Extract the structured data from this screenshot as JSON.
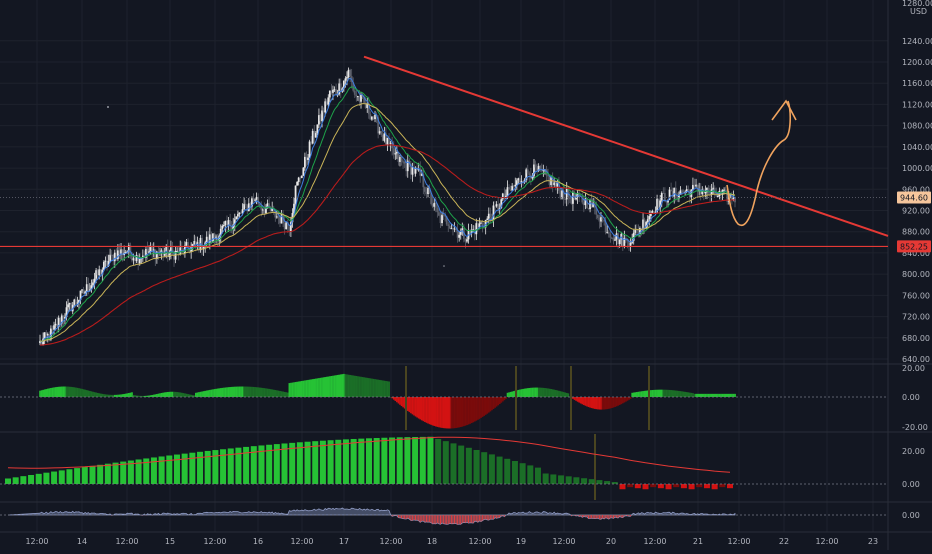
{
  "theme": {
    "background": "#131722",
    "grid": "#1e222d",
    "separator": "#2a2e39",
    "up": "#e8e8e8",
    "down": "#5d606b",
    "resistance": "#e53935",
    "projection": "#f0a35e",
    "last_price_bg": "#f6c69c",
    "support_bg": "#e53935",
    "ema_fast": "#3c7de0",
    "ema_mid": "#1ea34a",
    "ema_slow": "#c9b458",
    "ema_long": "#b71c1c",
    "hist_up_strong": "#26c235",
    "hist_up_weak": "#1b6e27",
    "hist_down_strong": "#d31212",
    "hist_down_weak": "#7a0b0b",
    "signal_line": "#e53935",
    "osc_fill": "#6d7a9e",
    "osc_neg": "#e04040",
    "marker": "#4a4520"
  },
  "price_axis": {
    "currency": "USD",
    "top_value": "1280.00",
    "ticks": [
      "1240.00",
      "1200.00",
      "1160.00",
      "1120.00",
      "1080.00",
      "1040.00",
      "1000.00",
      "960.00",
      "920.00",
      "880.00",
      "840.00",
      "800.00",
      "760.00",
      "720.00",
      "680.00",
      "640.00"
    ],
    "last_price": "944.60",
    "support_price": "852.25"
  },
  "time_axis": {
    "labels": [
      "12:00",
      "14",
      "12:00",
      "15",
      "12:00",
      "16",
      "12:00",
      "17",
      "12:00",
      "18",
      "12:00",
      "19",
      "12:00",
      "20",
      "12:00",
      "21",
      "12:00",
      "22",
      "12:00",
      "23"
    ]
  },
  "panel2_axis": {
    "ticks": [
      "20.00",
      "0.00",
      "-20.00"
    ]
  },
  "panel3_axis": {
    "ticks": [
      "20.00",
      "0.00"
    ]
  },
  "panel4_axis": {
    "ticks": [
      "0.00"
    ]
  },
  "chart_data": {
    "type": "candlestick",
    "ylim": [
      640,
      1240
    ],
    "anchors": [
      [
        0,
        670
      ],
      [
        8,
        690
      ],
      [
        14,
        720
      ],
      [
        20,
        740
      ],
      [
        26,
        758
      ],
      [
        32,
        780
      ],
      [
        40,
        810
      ],
      [
        48,
        838
      ],
      [
        56,
        845
      ],
      [
        62,
        832
      ],
      [
        70,
        842
      ],
      [
        80,
        840
      ],
      [
        88,
        840
      ],
      [
        96,
        850
      ],
      [
        104,
        858
      ],
      [
        112,
        870
      ],
      [
        120,
        890
      ],
      [
        126,
        905
      ],
      [
        132,
        925
      ],
      [
        138,
        945
      ],
      [
        142,
        928
      ],
      [
        148,
        918
      ],
      [
        154,
        905
      ],
      [
        160,
        890
      ],
      [
        164,
        960
      ],
      [
        170,
        1010
      ],
      [
        174,
        1050
      ],
      [
        178,
        1080
      ],
      [
        182,
        1110
      ],
      [
        186,
        1140
      ],
      [
        190,
        1145
      ],
      [
        194,
        1160
      ],
      [
        198,
        1180
      ],
      [
        202,
        1140
      ],
      [
        208,
        1120
      ],
      [
        214,
        1095
      ],
      [
        220,
        1060
      ],
      [
        226,
        1030
      ],
      [
        232,
        1010
      ],
      [
        238,
        1000
      ],
      [
        244,
        985
      ],
      [
        250,
        945
      ],
      [
        256,
        905
      ],
      [
        262,
        900
      ],
      [
        268,
        880
      ],
      [
        274,
        872
      ],
      [
        280,
        888
      ],
      [
        286,
        900
      ],
      [
        292,
        920
      ],
      [
        298,
        945
      ],
      [
        304,
        965
      ],
      [
        310,
        985
      ],
      [
        316,
        995
      ],
      [
        322,
        990
      ],
      [
        328,
        975
      ],
      [
        334,
        955
      ],
      [
        340,
        945
      ],
      [
        346,
        940
      ],
      [
        352,
        935
      ],
      [
        358,
        915
      ],
      [
        364,
        885
      ],
      [
        370,
        868
      ],
      [
        376,
        862
      ],
      [
        382,
        875
      ],
      [
        388,
        900
      ],
      [
        394,
        925
      ],
      [
        400,
        945
      ],
      [
        406,
        950
      ],
      [
        412,
        955
      ],
      [
        418,
        958
      ],
      [
        424,
        960
      ],
      [
        430,
        952
      ],
      [
        437,
        948
      ],
      [
        445,
        945
      ]
    ],
    "resistance_line": {
      "from": [
        "17 09:00",
        1210
      ],
      "to": [
        "right edge",
        872
      ]
    },
    "support_level": 852.25,
    "last_price": 944.6,
    "series": [
      {
        "name": "ema_fast"
      },
      {
        "name": "ema_mid"
      },
      {
        "name": "ema_slow"
      },
      {
        "name": "ema_long"
      }
    ]
  }
}
